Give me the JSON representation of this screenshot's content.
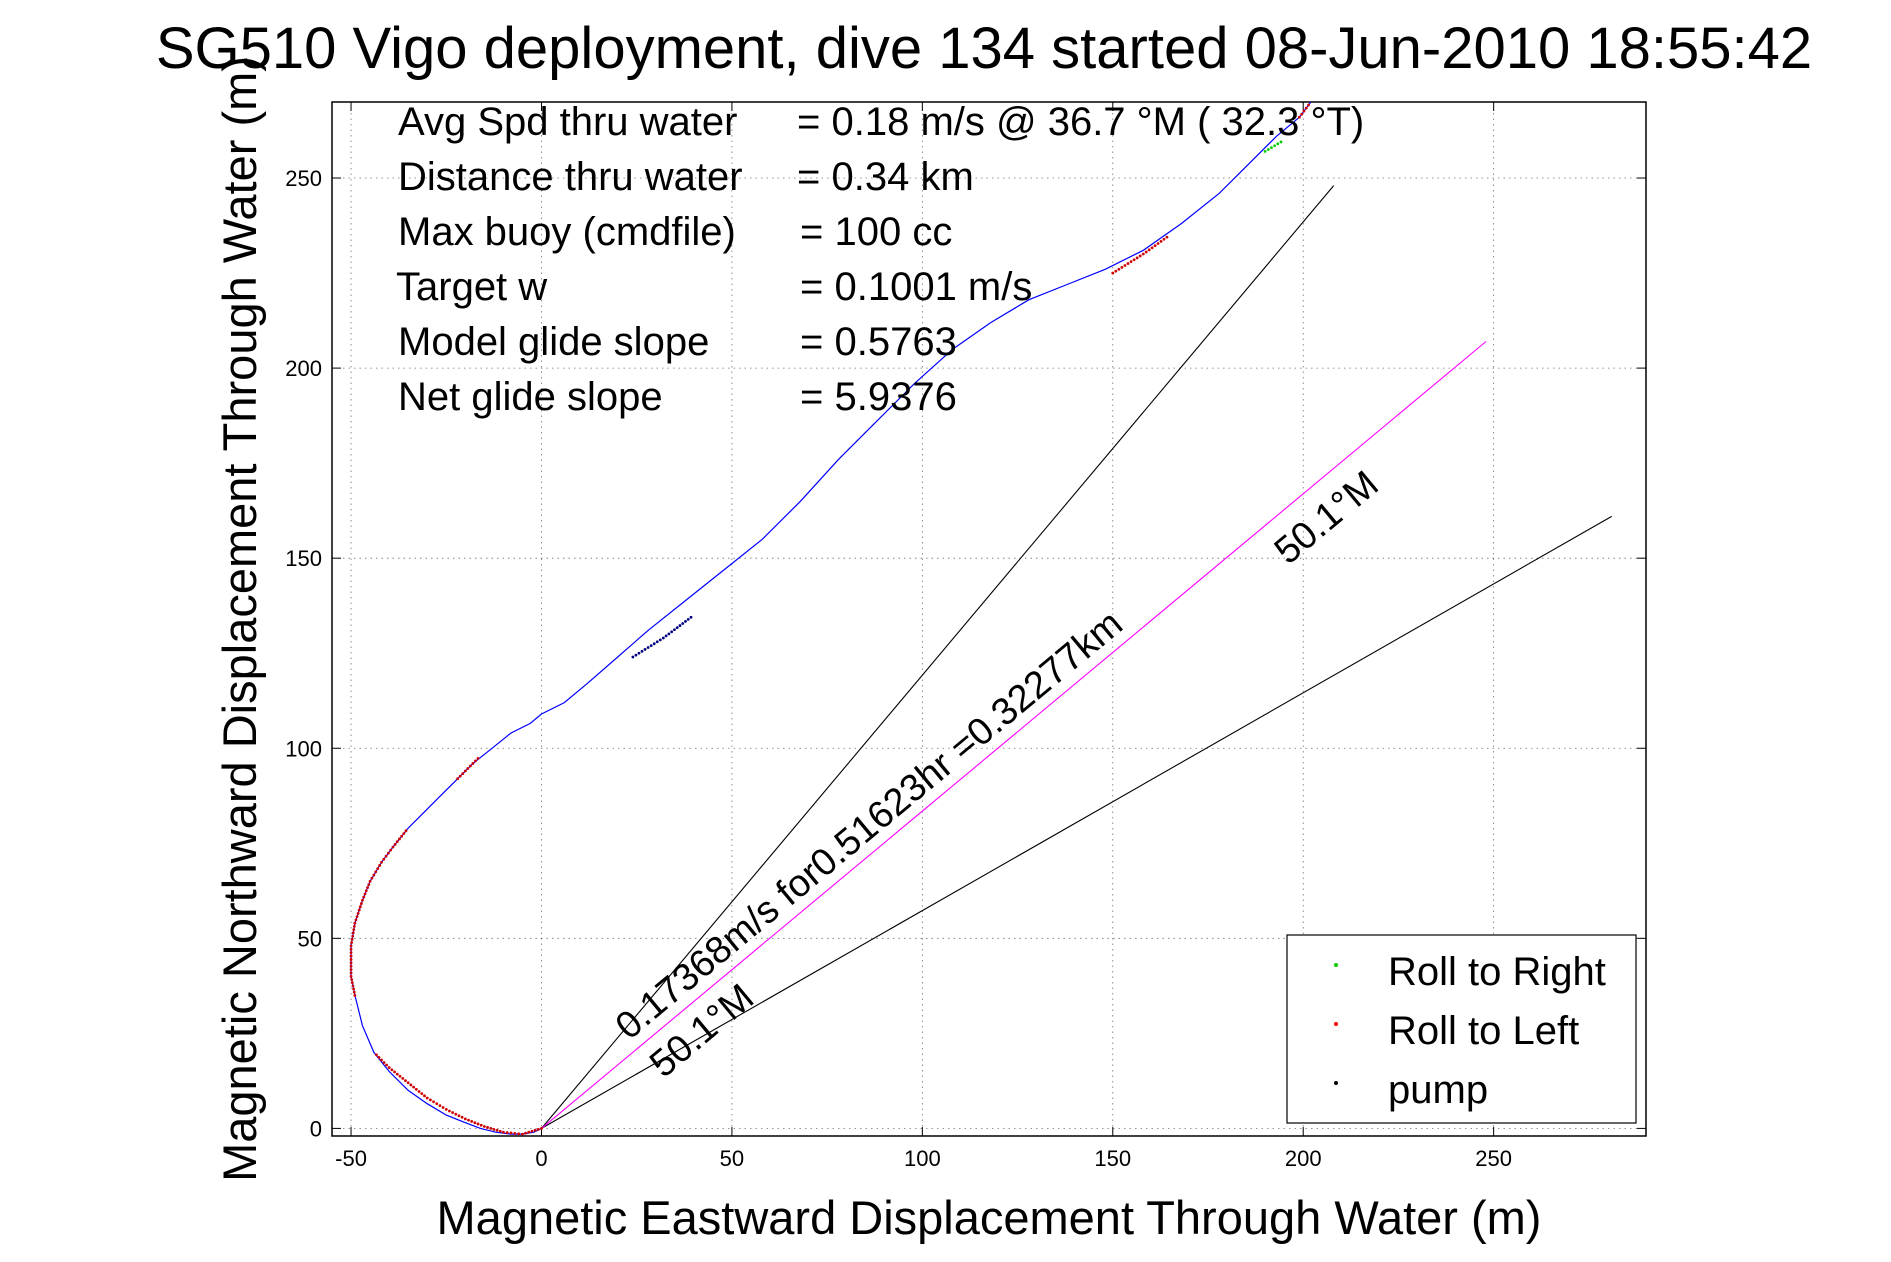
{
  "chart_data": {
    "type": "line",
    "title": "SG510 Vigo deployment, dive 134 started 08-Jun-2010 18:55:42",
    "xlabel": "Magnetic Eastward Displacement Through Water (m)",
    "ylabel": "Magnetic Northward Displacement Through Water (m)",
    "xlim": [
      -55,
      290
    ],
    "ylim": [
      -2,
      270
    ],
    "xticks": [
      -50,
      0,
      50,
      100,
      150,
      200,
      250
    ],
    "yticks": [
      0,
      50,
      100,
      150,
      200,
      250
    ],
    "grid": true,
    "info": [
      {
        "label": "Avg Spd thru water",
        "value": "=  0.18 m/s @  36.7 °M ( 32.3 °T)"
      },
      {
        "label": "Distance thru water",
        "value": "=  0.34 km"
      },
      {
        "label": "Max buoy (cmdfile)",
        "value": "= 100 cc"
      },
      {
        "label": "Target w",
        "value": "= 0.1001 m/s"
      },
      {
        "label": "Model glide slope",
        "value": "= 0.5763"
      },
      {
        "label": "Net glide slope",
        "value": "= 5.9376"
      }
    ],
    "track": {
      "color": "#0000ff",
      "x": [
        0,
        -2,
        -5,
        -8,
        -12,
        -16,
        -20,
        -25,
        -30,
        -35,
        -40,
        -44,
        -47,
        -49,
        -50,
        -50,
        -49,
        -47,
        -45,
        -42,
        -39,
        -35,
        -31,
        -27,
        -22,
        -18,
        -13,
        -8,
        -3,
        0,
        6,
        12,
        20,
        28,
        38,
        48,
        58,
        68,
        78,
        88,
        98,
        108,
        118,
        128,
        138,
        148,
        158,
        168,
        178,
        186,
        193,
        199,
        202
      ],
      "y": [
        0,
        -1,
        -1.5,
        -1.5,
        -1,
        0,
        1.5,
        3.5,
        6.5,
        10,
        15,
        20,
        27,
        35,
        40,
        48,
        54,
        60,
        65,
        70,
        74,
        79,
        83,
        87,
        92,
        96,
        100,
        104,
        106.5,
        109,
        112,
        117,
        124,
        131,
        139,
        147,
        155,
        165,
        176,
        186,
        196,
        205,
        212,
        218,
        222,
        226,
        231,
        238,
        246,
        254,
        261,
        266,
        270
      ]
    },
    "roll_left_segments": [
      {
        "x": [
          0,
          -5,
          -10,
          -15,
          -20,
          -25,
          -30,
          -35,
          -40,
          -44
        ],
        "y": [
          0,
          -1.5,
          -1,
          0.5,
          2.5,
          5,
          8,
          12,
          16,
          20
        ]
      },
      {
        "x": [
          -49,
          -50,
          -50,
          -49,
          -47,
          -45,
          -42,
          -39,
          -35
        ],
        "y": [
          35,
          40,
          48,
          54,
          60,
          65,
          70,
          74,
          79
        ]
      },
      {
        "x": [
          -22,
          -18,
          -16
        ],
        "y": [
          92,
          96,
          98
        ]
      },
      {
        "x": [
          150,
          158,
          165
        ],
        "y": [
          225,
          230,
          235
        ]
      },
      {
        "x": [
          199,
          202
        ],
        "y": [
          266,
          270
        ]
      }
    ],
    "roll_right_segments": [
      {
        "x": [
          190,
          195
        ],
        "y": [
          257,
          260
        ]
      }
    ],
    "pump_segments": [
      {
        "x": [
          24,
          32,
          40
        ],
        "y": [
          124,
          129,
          135
        ]
      }
    ],
    "lines": [
      {
        "name": "heading_upper",
        "color": "#000000",
        "x": [
          0,
          208
        ],
        "y": [
          0,
          248
        ]
      },
      {
        "name": "heading_lower",
        "color": "#000000",
        "x": [
          0,
          281
        ],
        "y": [
          0,
          161
        ]
      },
      {
        "name": "mean_current",
        "color": "#ff00ff",
        "x": [
          0,
          248
        ],
        "y": [
          0,
          207
        ]
      }
    ],
    "annotations": [
      {
        "text": "0.17368m/s for0.51623hr =0.32277km",
        "x": 23,
        "y": 23,
        "angle": 39.8
      },
      {
        "text": "50.1°M",
        "x": 32,
        "y": 13,
        "angle": 39.8
      },
      {
        "text": "50.1°M",
        "x": 196,
        "y": 148,
        "angle": 39.8
      }
    ],
    "legend": {
      "placement": "bottom-right",
      "entries": [
        {
          "label": "Roll to Right",
          "color": "#00cc00"
        },
        {
          "label": "Roll to Left",
          "color": "#ff0000"
        },
        {
          "label": "pump",
          "color": "#000000"
        }
      ]
    }
  }
}
